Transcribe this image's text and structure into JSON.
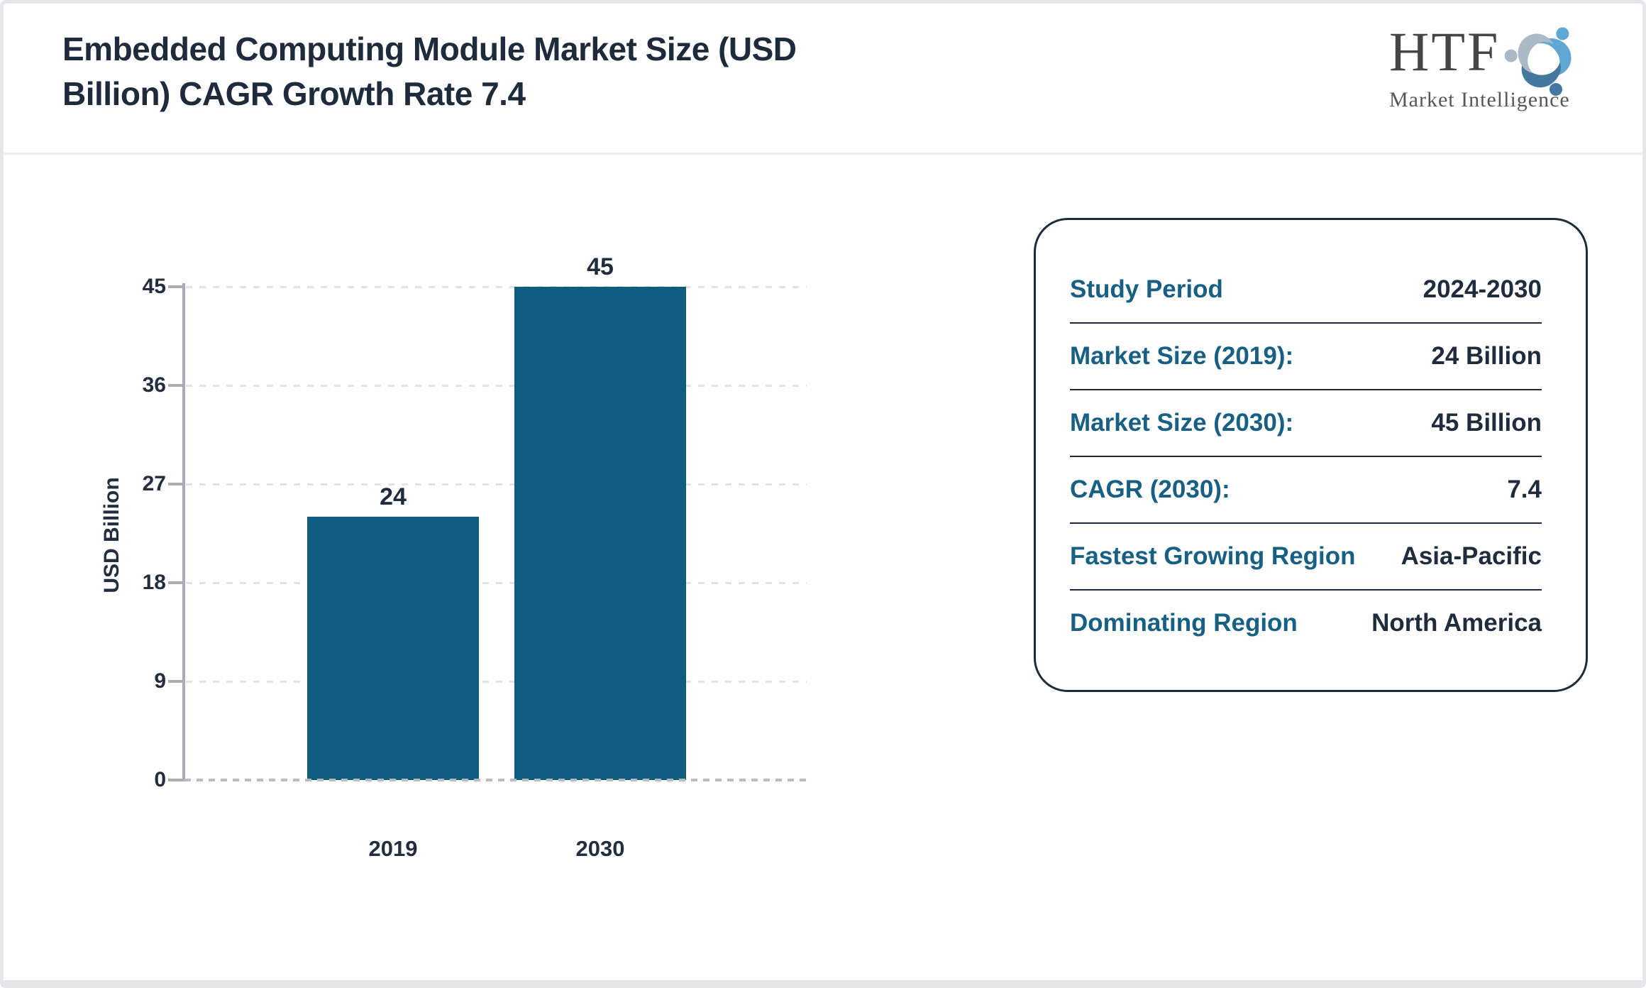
{
  "header": {
    "title_lines": [
      "Embedded Computing Module Market Size (USD",
      "Billion) CAGR Growth Rate 7.4"
    ],
    "logo": {
      "name": "HTF",
      "tagline": "Market Intelligence"
    }
  },
  "chart_data": {
    "type": "bar",
    "title": "Embedded Computing Module Market Size (USD Billion) CAGR Growth Rate 7.4",
    "categories": [
      "2019",
      "2030"
    ],
    "values": [
      24,
      45
    ],
    "xlabel": "",
    "ylabel": "USD Billion",
    "yticks": [
      0,
      9,
      18,
      27,
      36,
      45
    ],
    "ylim": [
      0,
      45
    ],
    "grid": "dashed-horizontal",
    "legend": "none",
    "bar_color": "#0e5c80"
  },
  "panel": {
    "rows": [
      {
        "label": "Study Period",
        "value": "2024-2030"
      },
      {
        "label": "Market Size (2019):",
        "value": "24 Billion"
      },
      {
        "label": "Market Size (2030):",
        "value": "45 Billion"
      },
      {
        "label": "CAGR (2030):",
        "value": "7.4"
      },
      {
        "label": "Fastest Growing Region",
        "value": "Asia-Pacific"
      },
      {
        "label": "Dominating Region",
        "value": "North America"
      }
    ]
  },
  "colors": {
    "bar": "#0e5c80",
    "title_text": "#1e2b3c",
    "panel_label": "#176083",
    "panel_value": "#1f2c3e",
    "axis": "#a9aeb6",
    "frame": "#e5e6ea",
    "logo_light_blue": "#5fa8d3",
    "logo_steel_blue": "#44789f",
    "logo_gray_blue": "#aab9c6"
  }
}
